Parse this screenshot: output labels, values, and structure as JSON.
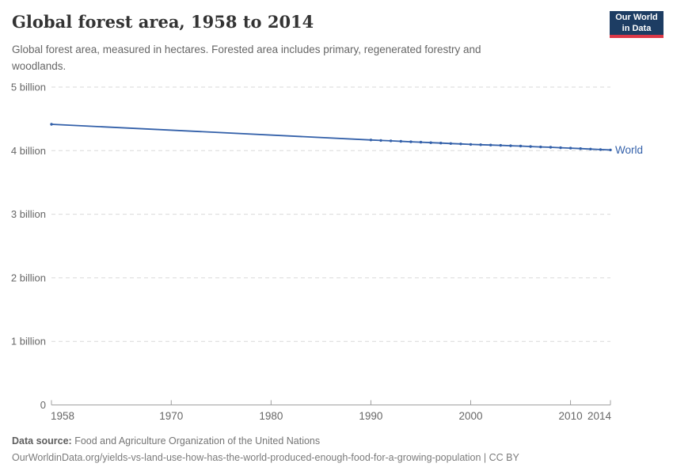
{
  "header": {
    "title": "Global forest area, 1958 to 2014",
    "subtitle": "Global forest area, measured in hectares. Forested area includes primary, regenerated forestry and woodlands.",
    "logo": {
      "line1": "Our World",
      "line2": "in Data"
    }
  },
  "footer": {
    "source_label": "Data source:",
    "source_value": "Food and Agriculture Organization of the United Nations",
    "citation_line": "OurWorldinData.org/yields-vs-land-use-how-has-the-world-produced-enough-food-for-a-growing-population | CC BY"
  },
  "colors": {
    "series_blue": "#3360a9",
    "grid": "#d9d9d9",
    "axis": "#a0a0a0",
    "tick_label": "#666666",
    "title_text": "#333333",
    "subtitle_text": "#666666",
    "footer_text": "#757575",
    "logo_navy": "#1d3d63",
    "logo_red": "#dc3847"
  },
  "chart_data": {
    "type": "line",
    "title": "Global forest area, 1958 to 2014",
    "xlabel": "",
    "ylabel": "",
    "unit": "billion hectares",
    "xlim": [
      1958,
      2014
    ],
    "ylim": [
      0,
      5
    ],
    "grid": "horizontal dashed",
    "legend_position": "line-end label",
    "x_ticks": [
      1958,
      1970,
      1980,
      1990,
      2000,
      2010,
      2014
    ],
    "y_ticks": [
      {
        "value": 0,
        "label": "0"
      },
      {
        "value": 1,
        "label": "1 billion"
      },
      {
        "value": 2,
        "label": "2 billion"
      },
      {
        "value": 3,
        "label": "3 billion"
      },
      {
        "value": 4,
        "label": "4 billion"
      },
      {
        "value": 5,
        "label": "5 billion"
      }
    ],
    "series": [
      {
        "name": "World",
        "color": "#3360a9",
        "points": [
          [
            1958,
            4.415
          ],
          [
            1990,
            4.168
          ],
          [
            1991,
            4.161
          ],
          [
            1992,
            4.154
          ],
          [
            1993,
            4.147
          ],
          [
            1994,
            4.14
          ],
          [
            1995,
            4.133
          ],
          [
            1996,
            4.126
          ],
          [
            1997,
            4.119
          ],
          [
            1998,
            4.112
          ],
          [
            1999,
            4.106
          ],
          [
            2000,
            4.099
          ],
          [
            2001,
            4.094
          ],
          [
            2002,
            4.088
          ],
          [
            2003,
            4.083
          ],
          [
            2004,
            4.077
          ],
          [
            2005,
            4.072
          ],
          [
            2006,
            4.065
          ],
          [
            2007,
            4.059
          ],
          [
            2008,
            4.053
          ],
          [
            2009,
            4.046
          ],
          [
            2010,
            4.04
          ],
          [
            2011,
            4.033
          ],
          [
            2012,
            4.025
          ],
          [
            2013,
            4.018
          ],
          [
            2014,
            4.011
          ]
        ]
      }
    ]
  }
}
